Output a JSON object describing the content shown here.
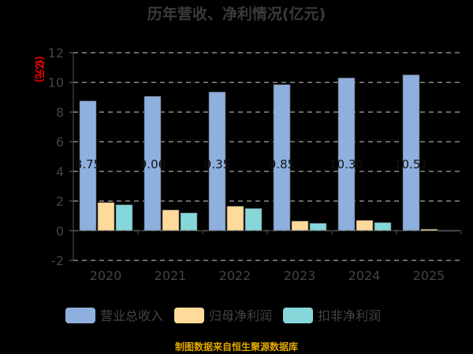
{
  "chart_data": {
    "type": "bar",
    "title": "历年营收、净利情况(亿元)",
    "ylabel": "(亿元)",
    "xlabel": "",
    "ylim": [
      -2,
      12
    ],
    "yticks": [
      -2,
      0,
      2,
      4,
      6,
      8,
      10,
      12
    ],
    "grid": true,
    "legend_position": "bottom",
    "categories": [
      "2020",
      "2021",
      "2022",
      "2023",
      "2024",
      "2025"
    ],
    "series": [
      {
        "name": "营业总收入",
        "color": "#8eb0de",
        "values": [
          8.75,
          9.06,
          9.35,
          9.85,
          10.3,
          10.51
        ],
        "labels": [
          "8.75",
          "9.06",
          "9.35",
          "9.85",
          "10.30",
          "10.51"
        ]
      },
      {
        "name": "归母净利润",
        "color": "#fedb9b",
        "values": [
          1.9,
          1.4,
          1.65,
          0.65,
          0.7,
          0.1
        ]
      },
      {
        "name": "扣非净利润",
        "color": "#86d7d9",
        "values": [
          1.75,
          1.2,
          1.5,
          0.5,
          0.55,
          0.02
        ]
      }
    ]
  },
  "source": "制图数据来自恒生聚源数据库"
}
